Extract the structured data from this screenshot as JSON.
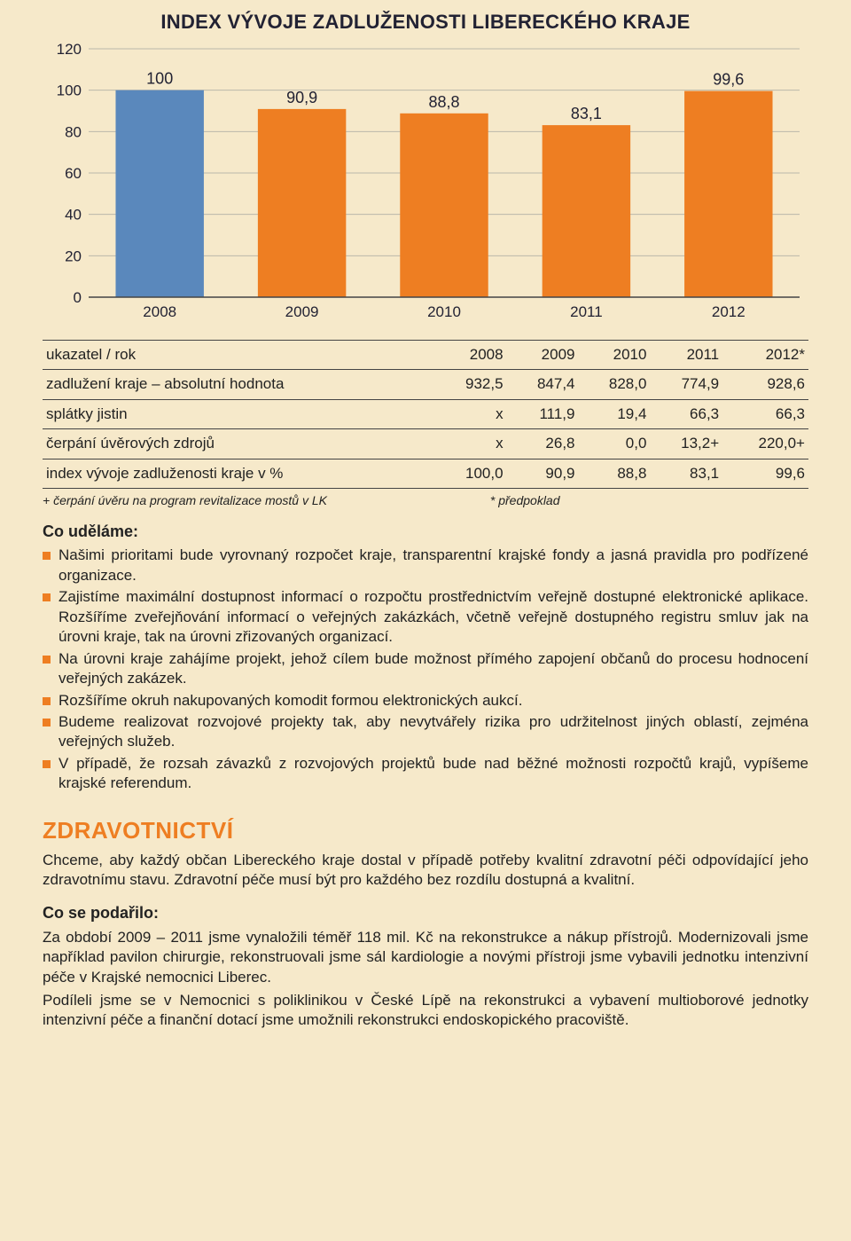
{
  "chart": {
    "type": "bar",
    "title": "INDEX VÝVOJE ZADLUŽENOSTI LIBERECKÉHO KRAJE",
    "categories": [
      "2008",
      "2009",
      "2010",
      "2011",
      "2012"
    ],
    "values": [
      100,
      90.9,
      88.8,
      83.1,
      99.6
    ],
    "value_labels": [
      "100",
      "90,9",
      "88,8",
      "83,1",
      "99,6"
    ],
    "bar_colors": [
      "#5a88bc",
      "#ee7e22",
      "#ee7e22",
      "#ee7e22",
      "#ee7e22"
    ],
    "ylim": [
      0,
      120
    ],
    "ytick_step": 20,
    "background_color": "#f6e9ca",
    "grid_color": "#bbb8aa",
    "axis_color": "#444",
    "label_fontsize": 17,
    "value_fontsize": 18,
    "bar_width": 0.62
  },
  "table": {
    "header": [
      "ukazatel / rok",
      "2008",
      "2009",
      "2010",
      "2011",
      "2012*"
    ],
    "rows": [
      [
        "zadlužení kraje – absolutní hodnota",
        "932,5",
        "847,4",
        "828,0",
        "774,9",
        "928,6"
      ],
      [
        "splátky jistin",
        "x",
        "111,9",
        "19,4",
        "66,3",
        "66,3"
      ],
      [
        "čerpání úvěrových zdrojů",
        "x",
        "26,8",
        "0,0",
        "13,2+",
        "220,0+"
      ],
      [
        "index vývoje zadluženosti kraje v %",
        "100,0",
        "90,9",
        "88,8",
        "83,1",
        "99,6"
      ]
    ]
  },
  "footnote": {
    "left": "+ čerpání úvěru na program revitalizace mostů v LK",
    "right": "* předpoklad"
  },
  "co_udelame": {
    "heading": "Co uděláme:",
    "items": [
      "Našimi prioritami bude vyrovnaný rozpočet kraje, transparentní krajské fondy a jasná pravidla pro podřízené organizace.",
      "Zajistíme maximální dostupnost informací o rozpočtu prostřednictvím veřejně dostupné elektronické aplikace. Rozšíříme zveřejňování informací o veřejných zakázkách, včetně veřejně dostupného registru smluv jak na úrovni kraje, tak na úrovni zřizovaných organizací.",
      "Na úrovni kraje zahájíme projekt, jehož cílem bude možnost přímého zapojení občanů do procesu hodnocení veřejných zakázek.",
      "Rozšíříme okruh nakupovaných komodit formou elektronických aukcí.",
      "Budeme realizovat rozvojové projekty tak, aby nevytvářely rizika pro udržitelnost jiných oblastí, zejména veřejných služeb.",
      "V případě, že rozsah závazků z rozvojových projektů bude nad běžné možnosti rozpočtů krajů, vypíšeme krajské referendum."
    ]
  },
  "zdravotnictvi": {
    "heading": "ZDRAVOTNICTVÍ",
    "intro": "Chceme, aby každý občan Libereckého kraje dostal v případě potřeby kvalitní zdravotní péči odpovídající jeho zdravotnímu stavu. Zdravotní péče musí být pro každého bez rozdílu dostupná a kvalitní.",
    "co_se_podarilo_heading": "Co se podařilo:",
    "co_se_podarilo": [
      "Za období 2009 – 2011 jsme vynaložili téměř 118 mil. Kč na rekonstrukce a nákup přístrojů. Modernizovali jsme například pavilon chirurgie, rekonstruovali jsme sál kardiologie a novými přístroji jsme vybavili jednotku intenzivní péče v Krajské nemocnici Liberec.",
      "Podíleli jsme se v Nemocnici s poliklinikou v České Lípě na rekonstrukci a vybavení multioborové jednotky intenzivní péče a finanční dotací jsme umožnili rekonstrukci endoskopického pracoviště."
    ]
  }
}
